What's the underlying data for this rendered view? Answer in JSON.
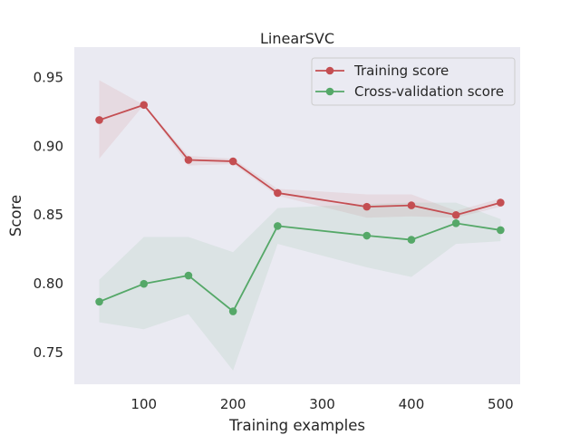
{
  "chart_data": {
    "type": "line",
    "title": "LinearSVC",
    "xlabel": "Training examples",
    "ylabel": "Score",
    "xlim": [
      22,
      522
    ],
    "ylim": [
      0.727,
      0.972
    ],
    "x_ticks": [
      100,
      200,
      300,
      400,
      500
    ],
    "y_ticks": [
      0.75,
      0.8,
      0.85,
      0.9,
      0.95
    ],
    "y_tick_labels": [
      "0.75",
      "0.80",
      "0.85",
      "0.90",
      "0.95"
    ],
    "grid": false,
    "legend_position": "top-right",
    "x": [
      50,
      100,
      150,
      200,
      250,
      350,
      400,
      450,
      500
    ],
    "series": [
      {
        "name": "Training score",
        "color": "#c44e52",
        "values": [
          0.919,
          0.93,
          0.89,
          0.889,
          0.866,
          0.856,
          0.857,
          0.85,
          0.859
        ],
        "lower": [
          0.891,
          0.93,
          0.886,
          0.887,
          0.864,
          0.848,
          0.849,
          0.848,
          0.856
        ],
        "upper": [
          0.948,
          0.93,
          0.893,
          0.891,
          0.869,
          0.865,
          0.865,
          0.853,
          0.862
        ]
      },
      {
        "name": "Cross-validation score",
        "color": "#55a868",
        "values": [
          0.787,
          0.8,
          0.806,
          0.78,
          0.842,
          0.835,
          0.832,
          0.844,
          0.839
        ],
        "lower": [
          0.772,
          0.767,
          0.778,
          0.737,
          0.829,
          0.812,
          0.805,
          0.829,
          0.831
        ],
        "upper": [
          0.803,
          0.834,
          0.834,
          0.823,
          0.855,
          0.858,
          0.859,
          0.859,
          0.847
        ]
      }
    ]
  }
}
